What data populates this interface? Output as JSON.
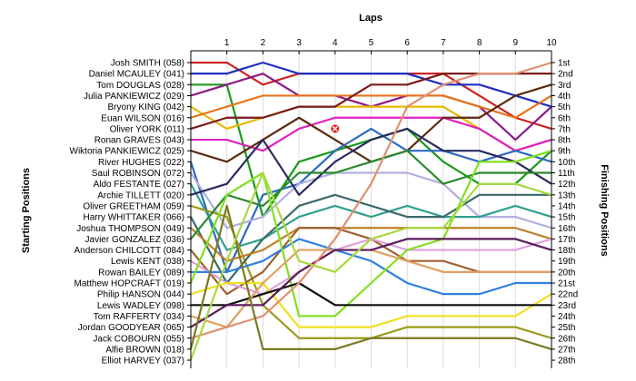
{
  "chart_data": {
    "type": "line",
    "title": "",
    "xlabel": "Laps",
    "ylabel_left": "Starting Positions",
    "ylabel_right": "Finishing Positions",
    "laps": [
      1,
      2,
      3,
      4,
      5,
      6,
      7,
      8,
      9,
      10
    ],
    "position_labels": [
      "1st",
      "2nd",
      "3rd",
      "4th",
      "5th",
      "6th",
      "7th",
      "8th",
      "9th",
      "10th",
      "11th",
      "12th",
      "13th",
      "14th",
      "15th",
      "16th",
      "17th",
      "18th",
      "19th",
      "20th",
      "21st",
      "22nd",
      "23rd",
      "24th",
      "25th",
      "26th",
      "27th",
      "28th"
    ],
    "retirement_marker": {
      "lap": 4,
      "position": 7,
      "color": "#dd2222"
    },
    "series": [
      {
        "name": "Josh SMITH (058)",
        "color": "#cc2222",
        "positions": [
          1,
          1,
          3,
          2,
          2,
          2,
          2,
          2,
          4,
          6,
          7
        ]
      },
      {
        "name": "Daniel MCAULEY (041)",
        "color": "#1f2fbf",
        "positions": [
          2,
          2,
          1,
          2,
          2,
          2,
          2,
          3,
          3,
          4,
          5
        ]
      },
      {
        "name": "Tom DOUGLAS (028)",
        "color": "#1a9a1a",
        "positions": [
          3,
          3,
          15,
          10,
          9,
          8,
          7,
          10,
          12,
          12,
          9
        ]
      },
      {
        "name": "Julia PANKIEWICZ (029)",
        "color": "#8a1a8a",
        "positions": [
          4,
          3,
          2,
          4,
          4,
          5,
          4,
          4,
          5,
          8,
          5
        ]
      },
      {
        "name": "Bryony KING (042)",
        "color": "#e8b800",
        "positions": [
          5,
          7,
          6,
          5,
          5,
          5,
          5,
          5,
          7,
          9,
          8
        ]
      },
      {
        "name": "Euan WILSON (016)",
        "color": "#e8741a",
        "positions": [
          6,
          5,
          4,
          4,
          4,
          4,
          4,
          4,
          5,
          6,
          4
        ]
      },
      {
        "name": "Oliver YORK (011)",
        "color": "#7a1a1a",
        "positions": [
          7,
          6,
          6,
          5,
          5,
          3,
          3,
          2,
          2,
          2,
          2
        ]
      },
      {
        "name": "Ronan GRAVES (043)",
        "color": "#e020c0",
        "positions": [
          8,
          8,
          9,
          7,
          6,
          6,
          6,
          6,
          7,
          9,
          8
        ]
      },
      {
        "name": "Wiktoria PANKIEWICZ (025)",
        "color": "#5a2a10",
        "positions": [
          9,
          10,
          8,
          6,
          8,
          10,
          9,
          6,
          6,
          4,
          3
        ]
      },
      {
        "name": "River HUGHES (022)",
        "color": "#2c6ac0",
        "positions": [
          10,
          20,
          13,
          12,
          9,
          7,
          9,
          9,
          10,
          9,
          10
        ]
      },
      {
        "name": "Saul ROBINSON (072)",
        "color": "#b0b0e0",
        "positions": [
          11,
          16,
          15,
          12,
          11,
          11,
          11,
          12,
          15,
          15,
          16
        ]
      },
      {
        "name": "Aldo FESTANTE (027)",
        "color": "#30a090",
        "positions": [
          12,
          18,
          17,
          15,
          14,
          15,
          14,
          15,
          15,
          14,
          15
        ]
      },
      {
        "name": "Archie TILLETT (020)",
        "color": "#2a2a60",
        "positions": [
          13,
          12,
          8,
          13,
          10,
          8,
          7,
          9,
          9,
          10,
          12
        ]
      },
      {
        "name": "Oliver GREETHAM (059)",
        "color": "#9a9a1a",
        "positions": [
          14,
          15,
          23,
          26,
          26,
          26,
          25,
          25,
          25,
          25,
          26
        ]
      },
      {
        "name": "Harry WHITTAKER (066)",
        "color": "#3a6a6a",
        "positions": [
          15,
          21,
          17,
          14,
          13,
          14,
          15,
          15,
          13,
          13,
          13
        ]
      },
      {
        "name": "Joshua THOMPSON (049)",
        "color": "#c0802a",
        "positions": [
          16,
          19,
          18,
          16,
          16,
          16,
          16,
          16,
          16,
          16,
          17
        ]
      },
      {
        "name": "Javier GONZALEZ (036)",
        "color": "#2a8a2a",
        "positions": [
          17,
          13,
          14,
          11,
          11,
          10,
          9,
          12,
          11,
          11,
          11
        ]
      },
      {
        "name": "Anderson CHILCOTT (084)",
        "color": "#a06030",
        "positions": [
          18,
          22,
          20,
          16,
          16,
          17,
          19,
          19,
          20,
          20,
          20
        ]
      },
      {
        "name": "Lewis KENT (038)",
        "color": "#e0a0e0",
        "positions": [
          19,
          21,
          22,
          20,
          18,
          17,
          18,
          18,
          18,
          18,
          17
        ]
      },
      {
        "name": "Rowan BAILEY (089)",
        "color": "#3080e0",
        "positions": [
          20,
          20,
          19,
          17,
          18,
          19,
          21,
          22,
          22,
          21,
          21
        ]
      },
      {
        "name": "Matthew HOPCRAFT (019)",
        "color": "#80e020",
        "positions": [
          21,
          13,
          11,
          24,
          24,
          21,
          18,
          17,
          10,
          10,
          9
        ]
      },
      {
        "name": "Philip HANSON (044)",
        "color": "#f0e020",
        "positions": [
          22,
          21,
          21,
          25,
          25,
          25,
          24,
          24,
          24,
          24,
          22
        ]
      },
      {
        "name": "Lewis WADLEY (098)",
        "color": "#101010",
        "positions": [
          23,
          23,
          22,
          21,
          23,
          23,
          23,
          23,
          23,
          23,
          23
        ]
      },
      {
        "name": "Tom RAFFERTY (034)",
        "color": "#e0a060",
        "positions": [
          24,
          25,
          21,
          18,
          18,
          18,
          19,
          20,
          20,
          20,
          20
        ]
      },
      {
        "name": "Jordan GOODYEAR (065)",
        "color": "#5a1a5a",
        "positions": [
          25,
          23,
          23,
          20,
          18,
          18,
          17,
          17,
          17,
          17,
          18
        ]
      },
      {
        "name": "Jack COBOURN (055)",
        "color": "#e09070",
        "positions": [
          26,
          25,
          24,
          21,
          17,
          12,
          5,
          3,
          2,
          2,
          1
        ]
      },
      {
        "name": "Alfie BROWN (018)",
        "color": "#7a7a20",
        "positions": [
          27,
          14,
          27,
          27,
          27,
          26,
          26,
          26,
          26,
          26,
          27
        ]
      },
      {
        "name": "Elliot HARVEY (037)",
        "color": "#a8d840",
        "positions": [
          28,
          19,
          11,
          19,
          20,
          17,
          16,
          16,
          12,
          12,
          13
        ]
      }
    ]
  }
}
